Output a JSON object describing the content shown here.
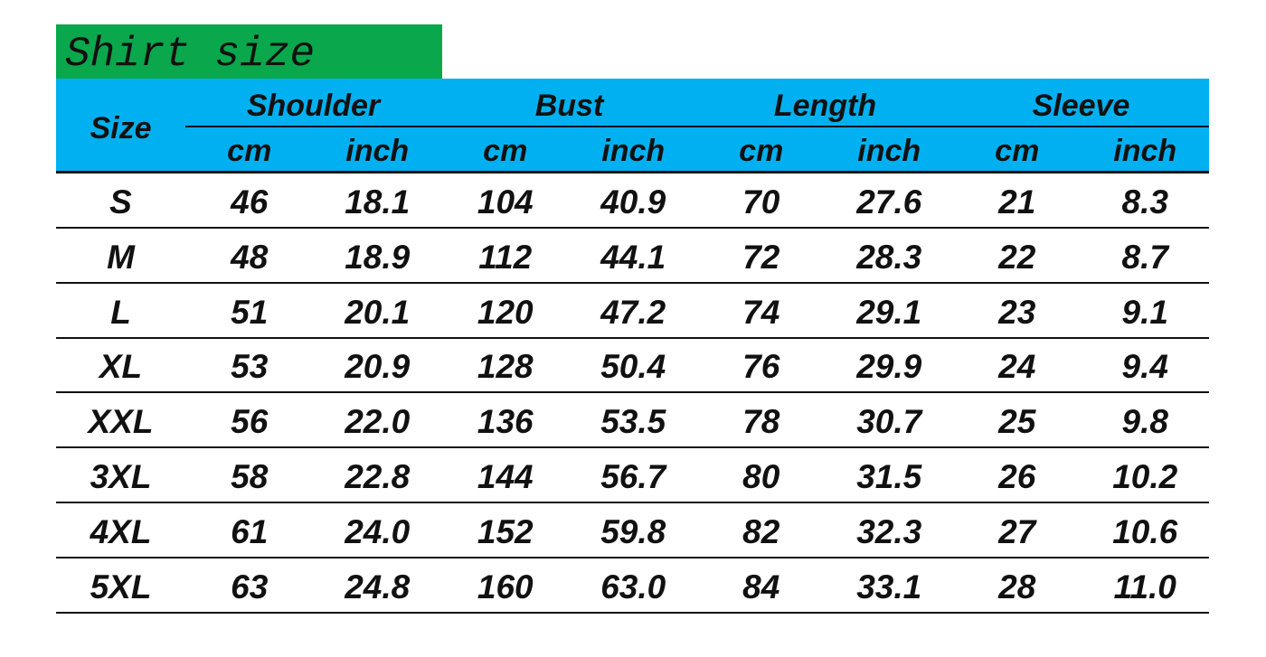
{
  "title": "Shirt size",
  "header": {
    "size": "Size",
    "groups": [
      "Shoulder",
      "Bust",
      "Length",
      "Sleeve"
    ],
    "units": [
      "cm",
      "inch",
      "cm",
      "inch",
      "cm",
      "inch",
      "cm",
      "inch"
    ]
  },
  "rows": [
    [
      "S",
      "46",
      "18.1",
      "104",
      "40.9",
      "70",
      "27.6",
      "21",
      "8.3"
    ],
    [
      "M",
      "48",
      "18.9",
      "112",
      "44.1",
      "72",
      "28.3",
      "22",
      "8.7"
    ],
    [
      "L",
      "51",
      "20.1",
      "120",
      "47.2",
      "74",
      "29.1",
      "23",
      "9.1"
    ],
    [
      "XL",
      "53",
      "20.9",
      "128",
      "50.4",
      "76",
      "29.9",
      "24",
      "9.4"
    ],
    [
      "XXL",
      "56",
      "22.0",
      "136",
      "53.5",
      "78",
      "30.7",
      "25",
      "9.8"
    ],
    [
      "3XL",
      "58",
      "22.8",
      "144",
      "56.7",
      "80",
      "31.5",
      "26",
      "10.2"
    ],
    [
      "4XL",
      "61",
      "24.0",
      "152",
      "59.8",
      "82",
      "32.3",
      "27",
      "10.6"
    ],
    [
      "5XL",
      "63",
      "24.8",
      "160",
      "63.0",
      "84",
      "33.1",
      "28",
      "11.0"
    ]
  ],
  "colors": {
    "title_bg": "#0aa74c",
    "header_bg": "#00b0f0"
  }
}
